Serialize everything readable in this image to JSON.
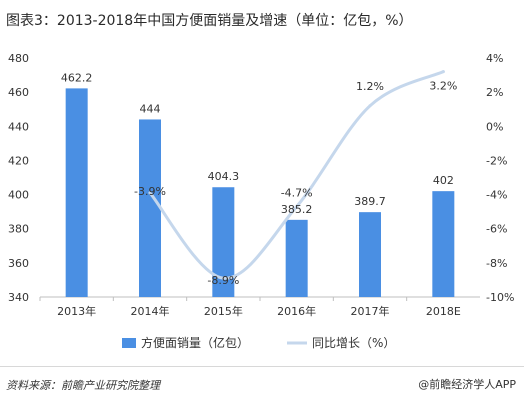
{
  "title": "图表3：2013-2018年中国方便面销量及增速（单位：亿包，%）",
  "source": "资料来源：前瞻产业研究院整理",
  "brand": "@前瞻经济学人APP",
  "colors": {
    "bar": "#4a8fe3",
    "line": "#c5d7ec",
    "axis": "#bfbfbf"
  },
  "chart_data": {
    "type": "bar",
    "categories": [
      "2013年",
      "2014年",
      "2015年",
      "2016年",
      "2017年",
      "2018E"
    ],
    "series": [
      {
        "name": "方便面销量（亿包）",
        "type": "bar",
        "axis": "left",
        "values": [
          462.2,
          444,
          404.3,
          385.2,
          389.7,
          402
        ],
        "labels": [
          "462.2",
          "444",
          "404.3",
          "385.2",
          "389.7",
          "402"
        ]
      },
      {
        "name": "同比增长（%）",
        "type": "line",
        "axis": "right",
        "values": [
          null,
          -3.9,
          -8.9,
          -4.7,
          1.2,
          3.2
        ],
        "labels": [
          "",
          "-3.9%",
          "-8.9%",
          "-4.7%",
          "1.2%",
          "3.2%"
        ]
      }
    ],
    "y_left": {
      "min": 340,
      "max": 480,
      "ticks": [
        "340",
        "360",
        "380",
        "400",
        "420",
        "440",
        "460",
        "480"
      ]
    },
    "y_right": {
      "min": -10,
      "max": 4,
      "ticks": [
        "-10%",
        "-8%",
        "-6%",
        "-4%",
        "-2%",
        "0%",
        "2%",
        "4%"
      ]
    },
    "legend_position": "bottom"
  }
}
